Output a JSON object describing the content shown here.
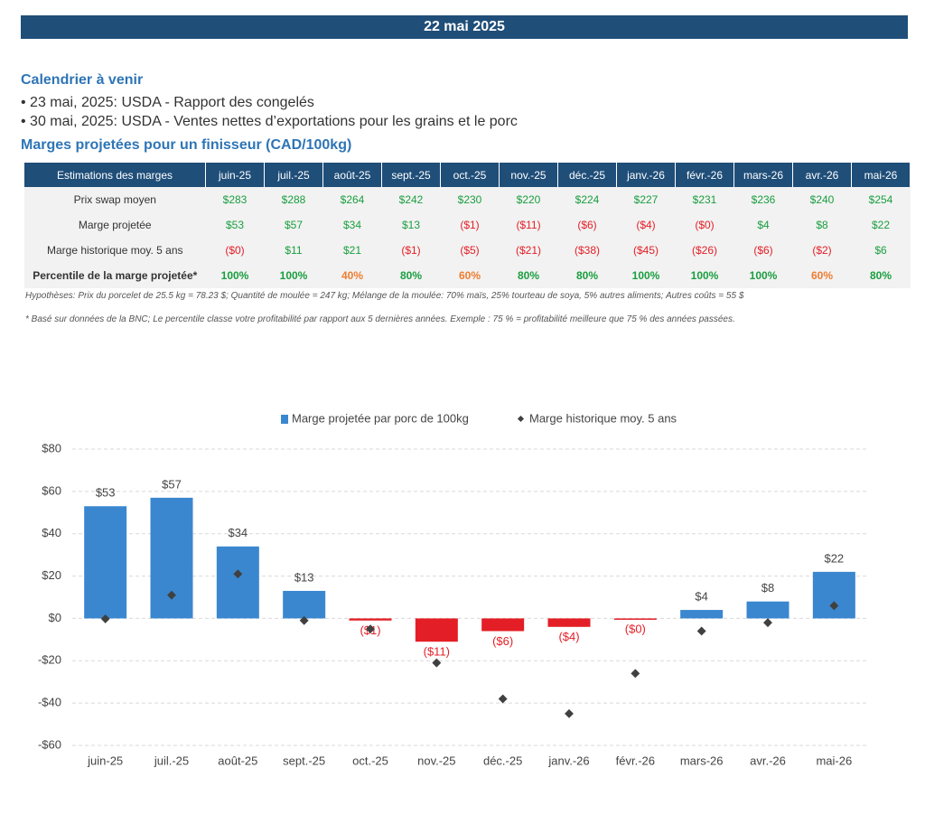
{
  "header": {
    "title": "22 mai 2025"
  },
  "calendar": {
    "title": "Calendrier à venir",
    "items": [
      "• 23 mai, 2025: USDA - Rapport des congelés",
      "• 30 mai, 2025: USDA - Ventes nettes d’exportations pour les grains et le porc"
    ]
  },
  "table": {
    "title": "Marges projetées pour un finisseur (CAD/100kg)",
    "header": [
      "Estimations des marges",
      "juin-25",
      "juil.-25",
      "août-25",
      "sept.-25",
      "oct.-25",
      "nov.-25",
      "déc.-25",
      "janv.-26",
      "févr.-26",
      "mars-26",
      "avr.-26",
      "mai-26"
    ],
    "rows": [
      [
        "Prix swap moyen",
        "$283",
        "$288",
        "$264",
        "$242",
        "$230",
        "$220",
        "$224",
        "$227",
        "$231",
        "$236",
        "$240",
        "$254"
      ],
      [
        "Marge projetée",
        "$53",
        "$57",
        "$34",
        "$13",
        "($1)",
        "($11)",
        "($6)",
        "($4)",
        "($0)",
        "$4",
        "$8",
        "$22"
      ],
      [
        "Marge historique moy. 5 ans",
        "($0)",
        "$11",
        "$21",
        "($1)",
        "($5)",
        "($21)",
        "($38)",
        "($45)",
        "($26)",
        "($6)",
        "($2)",
        "$6"
      ],
      [
        "Percentile de la marge projetée*",
        "100%",
        "100%",
        "40%",
        "80%",
        "60%",
        "80%",
        "80%",
        "100%",
        "100%",
        "100%",
        "60%",
        "80%"
      ]
    ]
  },
  "notes": [
    "Hypothèses: Prix du porcelet de 25.5 kg = 78.23 $; Quantité de moulée = 247 kg; Mélange de la moulée: 70% maïs, 25% tourteau de soya, 5% autres aliments; Autres coûts = 55 $",
    "* Basé sur données de la BNC; Le percentile classe votre profitabilité par rapport aux 5 dernières années. Exemple : 75 % = profitabilité meilleure que 75 % des années passées."
  ],
  "chart_data": {
    "type": "bar",
    "categories": [
      "juin-25",
      "juil.-25",
      "août-25",
      "sept.-25",
      "oct.-25",
      "nov.-25",
      "déc.-25",
      "janv.-26",
      "févr.-26",
      "mars-26",
      "avr.-26",
      "mai-26"
    ],
    "series": [
      {
        "name": "Marge projetée par porc de 100kg",
        "type": "bar",
        "color": "#3a87d0",
        "negative_color": "#e41e26",
        "values": [
          53,
          57,
          34,
          13,
          -1,
          -11,
          -6,
          -4,
          -0.3,
          4,
          8,
          22
        ],
        "value_labels": [
          "$53",
          "$57",
          "$34",
          "$13",
          "($1)",
          "($11)",
          "($6)",
          "($4)",
          "($0)",
          "$4",
          "$8",
          "$22"
        ]
      },
      {
        "name": "Marge historique moy. 5 ans",
        "type": "scatter",
        "color": "#404040",
        "values": [
          -0.2,
          11,
          21,
          -1,
          -5,
          -21,
          -38,
          -45,
          -26,
          -6,
          -2,
          6
        ]
      }
    ],
    "ylim": [
      -60,
      80
    ],
    "yticks": [
      {
        "value": -60,
        "label": "-$60"
      },
      {
        "value": -40,
        "label": "-$40"
      },
      {
        "value": -20,
        "label": "-$20"
      },
      {
        "value": 0,
        "label": "$0"
      },
      {
        "value": 20,
        "label": "$20"
      },
      {
        "value": 40,
        "label": "$40"
      },
      {
        "value": 60,
        "label": "$60"
      },
      {
        "value": 80,
        "label": "$80"
      }
    ],
    "grid": true,
    "legend": "top"
  }
}
